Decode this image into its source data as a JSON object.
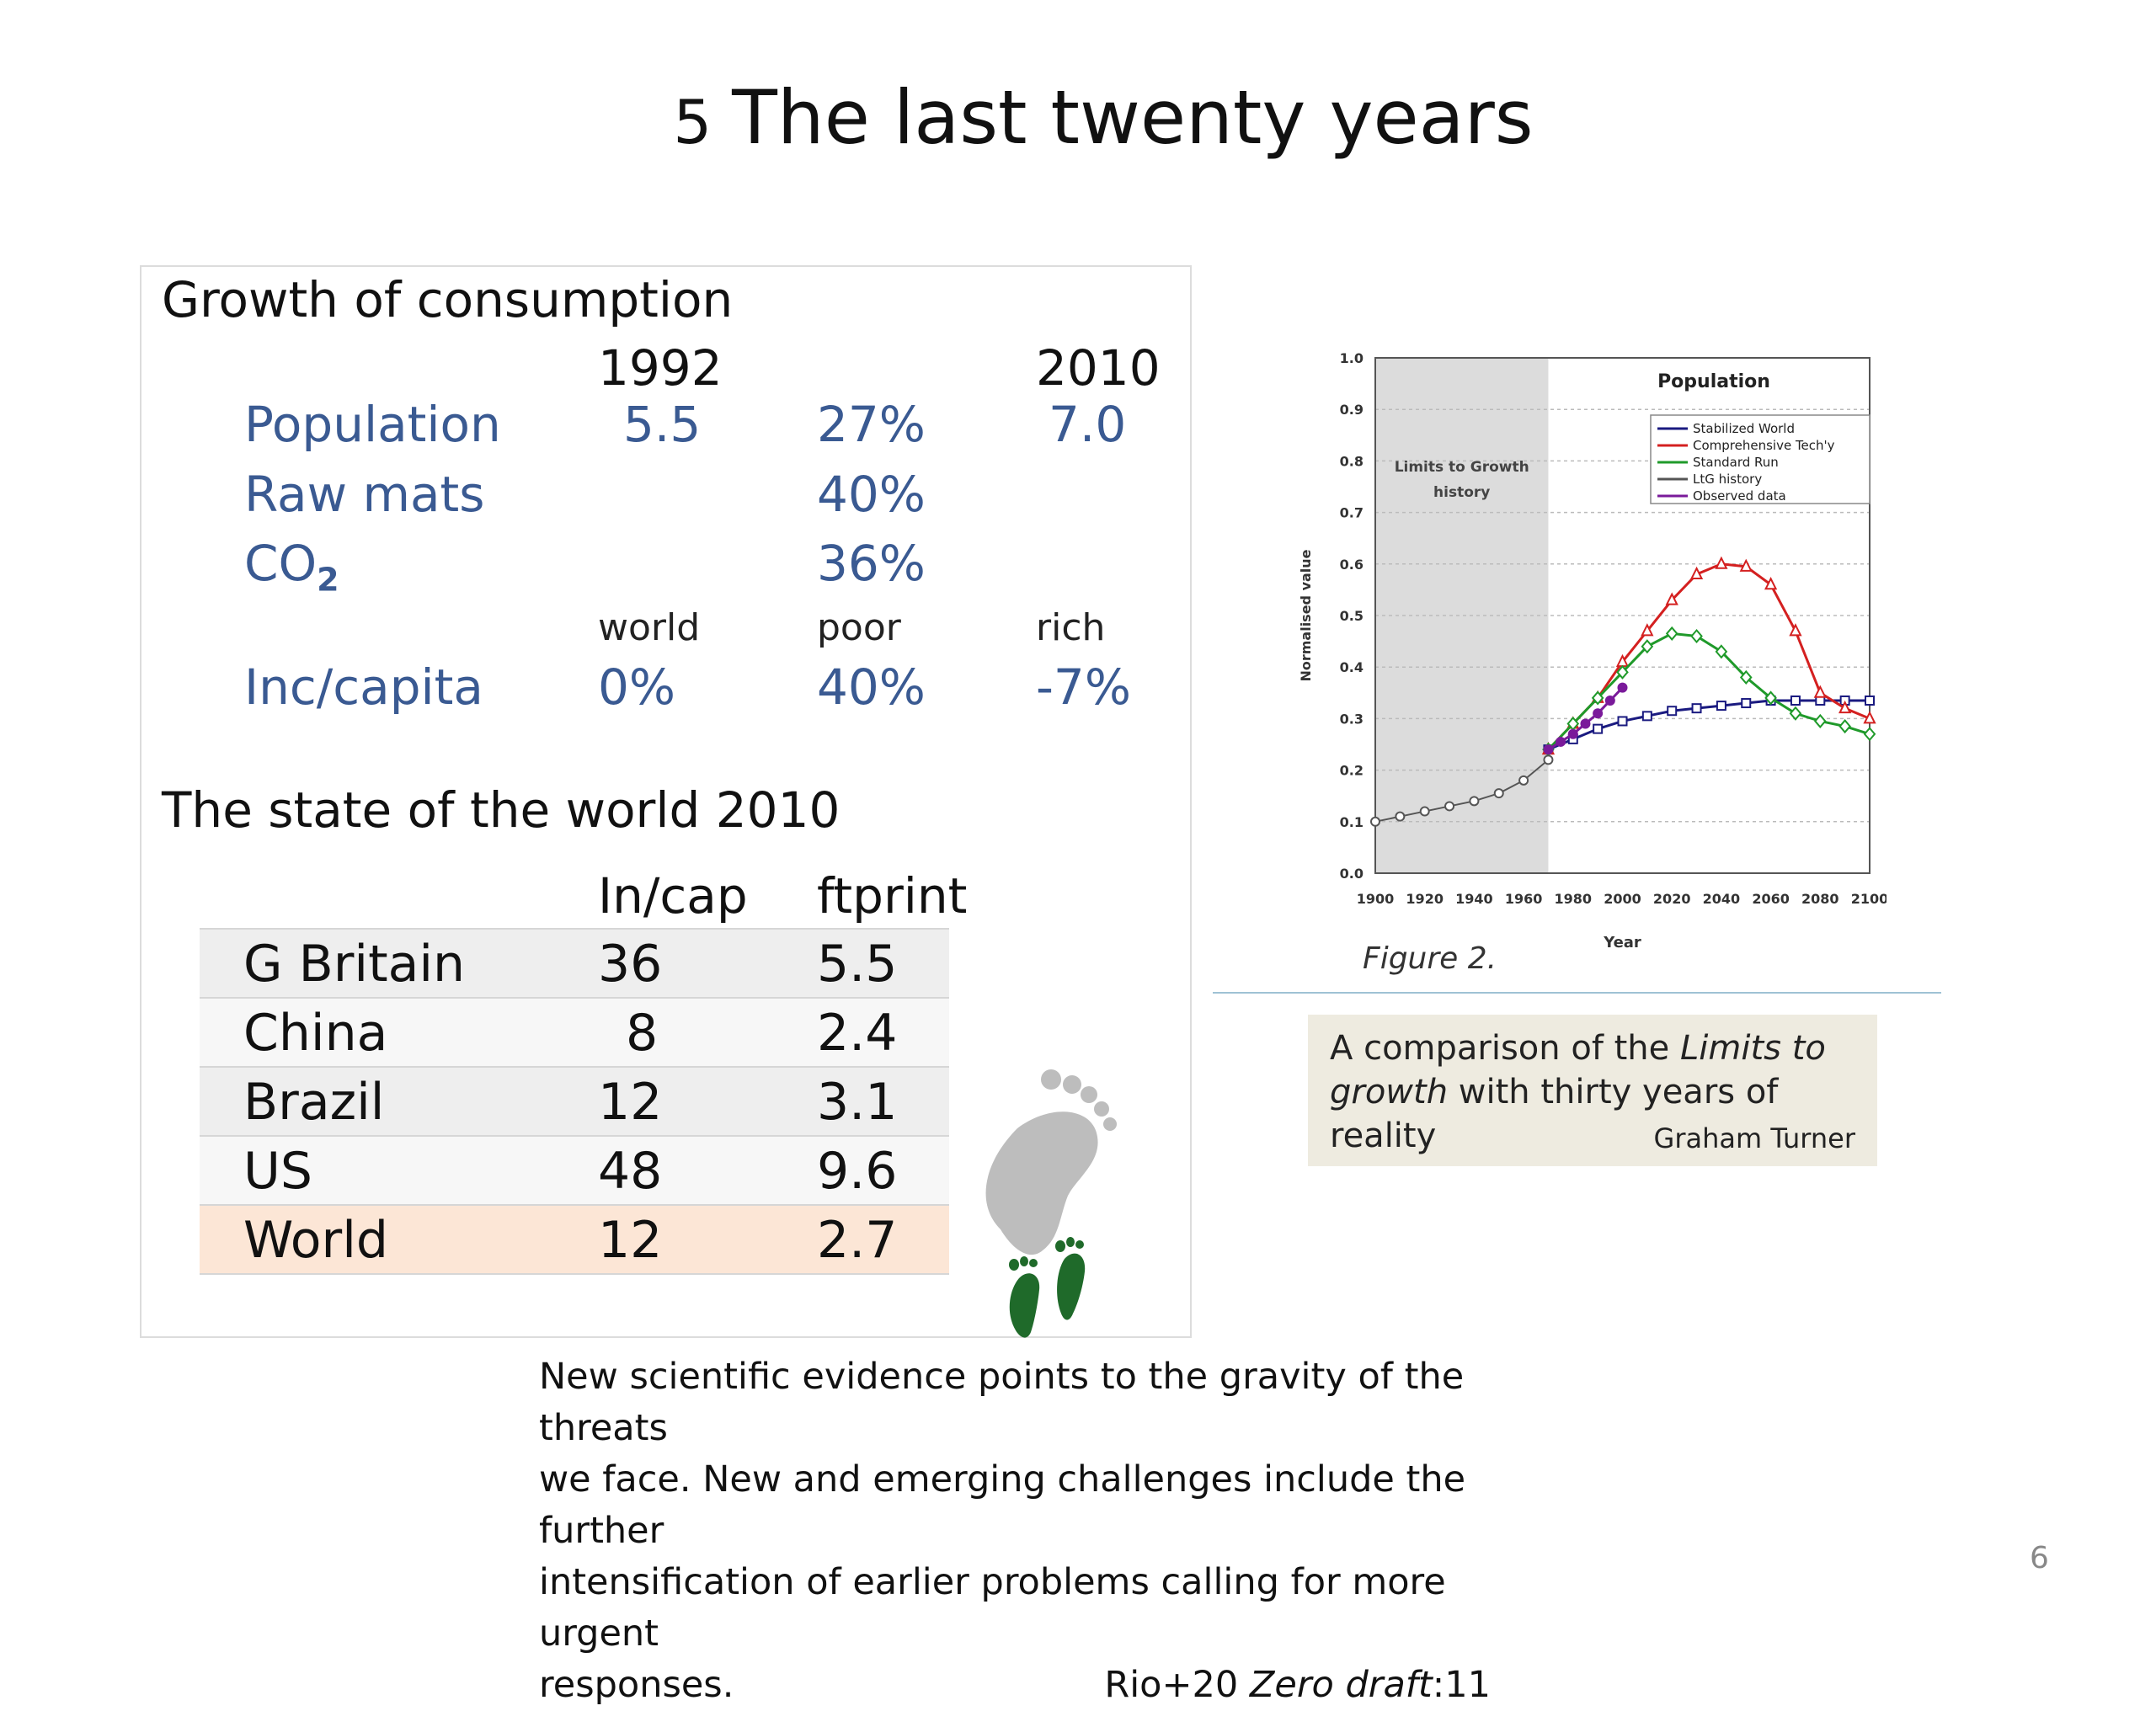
{
  "slide": {
    "number_prefix": "5",
    "title": "The last twenty years",
    "page_number": "6"
  },
  "consumption": {
    "heading": "Growth of consumption",
    "col_1992": "1992",
    "col_2010": "2010",
    "population": {
      "label": "Population",
      "v1992": "5.5",
      "pct": "27%",
      "v2010": "7.0"
    },
    "raw_mats": {
      "label": "Raw mats",
      "pct": "40%"
    },
    "co2": {
      "label": "CO",
      "sub": "2",
      "pct": "36%"
    },
    "sub_headers": {
      "world": "world",
      "poor": "poor",
      "rich": "rich"
    },
    "inc_capita": {
      "label": "Inc/capita",
      "world": "0%",
      "poor": "40%",
      "rich": "-7%"
    }
  },
  "state_of_world": {
    "heading": "The state of the world 2010",
    "col_incap": "In/cap",
    "col_ftprint": "ftprint",
    "rows": [
      {
        "country": "G Britain",
        "incap": "36",
        "ftprint": "5.5"
      },
      {
        "country": "China",
        "incap": "8",
        "ftprint": "2.4"
      },
      {
        "country": "Brazil",
        "incap": "12",
        "ftprint": "3.1"
      },
      {
        "country": "US",
        "incap": "48",
        "ftprint": "9.6"
      },
      {
        "country": "World",
        "incap": "12",
        "ftprint": "2.7"
      }
    ]
  },
  "figure": {
    "label": "Figure 2.",
    "caption_line1_a": "A comparison of  the ",
    "caption_line1_b": "Limits to",
    "caption_line2_a": "growth",
    "caption_line2_b": " with thirty years of reality",
    "caption_author": "Graham Turner"
  },
  "quote": {
    "line1": "New scientific evidence points to the gravity of the threats",
    "line2": "we face. New and emerging challenges include the further",
    "line3": "intensification of earlier problems calling for more urgent",
    "line4": "responses.",
    "source_a": "Rio+20 ",
    "source_b": "Zero draft",
    "source_c": ":11"
  },
  "chart_data": {
    "type": "line",
    "title": "Population",
    "xlabel": "Year",
    "ylabel": "Normalised value",
    "xlim": [
      1900,
      2100
    ],
    "ylim": [
      0,
      1.0
    ],
    "x_ticks": [
      "1900",
      "1920",
      "1940",
      "1960",
      "1980",
      "2000",
      "2020",
      "2040",
      "2060",
      "2080",
      "2100"
    ],
    "y_ticks": [
      "0.0",
      "0.1",
      "0.2",
      "0.3",
      "0.4",
      "0.5",
      "0.6",
      "0.7",
      "0.8",
      "0.9",
      "1.0"
    ],
    "shaded_region": {
      "from": 1900,
      "to": 1970,
      "label_line1": "Limits to Growth",
      "label_line2": "history"
    },
    "grid": true,
    "legend_position": "top-right",
    "colors": {
      "stabilized": "#1a1a80",
      "comprehensive": "#d42020",
      "standard": "#1f9a2a",
      "history": "#555555",
      "observed": "#7a1a9a",
      "shade": "#dcdcdc"
    },
    "series": [
      {
        "name": "Stabilized World",
        "x": [
          1970,
          1980,
          1990,
          2000,
          2010,
          2020,
          2030,
          2040,
          2050,
          2060,
          2070,
          2080,
          2090,
          2100
        ],
        "values": [
          0.24,
          0.26,
          0.28,
          0.295,
          0.305,
          0.315,
          0.32,
          0.325,
          0.33,
          0.335,
          0.335,
          0.335,
          0.335,
          0.335
        ]
      },
      {
        "name": "Comprehensive Tech'y",
        "x": [
          1970,
          1980,
          1990,
          2000,
          2010,
          2020,
          2030,
          2040,
          2050,
          2060,
          2070,
          2080,
          2090,
          2100
        ],
        "values": [
          0.24,
          0.29,
          0.34,
          0.41,
          0.47,
          0.53,
          0.58,
          0.6,
          0.595,
          0.56,
          0.47,
          0.35,
          0.32,
          0.3
        ]
      },
      {
        "name": "Standard Run",
        "x": [
          1970,
          1980,
          1990,
          2000,
          2010,
          2020,
          2030,
          2040,
          2050,
          2060,
          2070,
          2080,
          2090,
          2100
        ],
        "values": [
          0.24,
          0.29,
          0.34,
          0.39,
          0.44,
          0.465,
          0.46,
          0.43,
          0.38,
          0.34,
          0.31,
          0.295,
          0.285,
          0.27
        ]
      },
      {
        "name": "LtG history",
        "x": [
          1900,
          1910,
          1920,
          1930,
          1940,
          1950,
          1960,
          1970
        ],
        "values": [
          0.1,
          0.11,
          0.12,
          0.13,
          0.14,
          0.155,
          0.18,
          0.22
        ]
      },
      {
        "name": "Observed data",
        "x": [
          1970,
          1975,
          1980,
          1985,
          1990,
          1995,
          2000
        ],
        "values": [
          0.24,
          0.255,
          0.27,
          0.29,
          0.31,
          0.335,
          0.36
        ]
      }
    ]
  }
}
